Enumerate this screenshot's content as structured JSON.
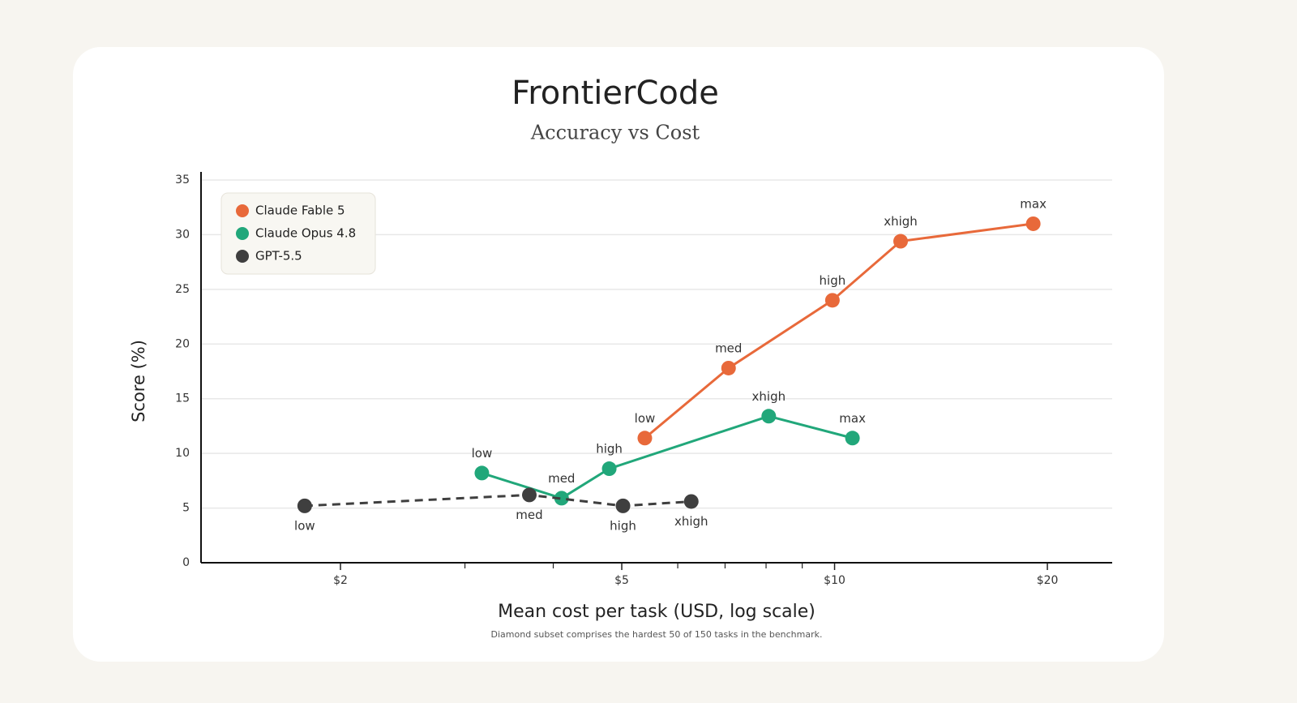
{
  "chart_data": {
    "type": "line",
    "title": "FrontierCode",
    "subtitle": "Accuracy vs Cost",
    "xlabel": "Mean cost per task (USD, log scale)",
    "ylabel": "Score (%)",
    "footnote": "Diamond subset comprises the hardest 50 of 150 tasks in the benchmark.",
    "xscale": "log",
    "xlim": [
      1.27,
      24.7
    ],
    "xticks": [
      {
        "value": 2,
        "label": "$2"
      },
      {
        "value": 5,
        "label": "$5"
      },
      {
        "value": 10,
        "label": "$10"
      },
      {
        "value": 20,
        "label": "$20"
      }
    ],
    "xminorticks": [
      3,
      4,
      6,
      7,
      8,
      9
    ],
    "ylim": [
      0,
      35
    ],
    "yticks": [
      0,
      5,
      10,
      15,
      20,
      25,
      30,
      35
    ],
    "grid": true,
    "legend": "top-left",
    "series": [
      {
        "name": "Claude Fable 5",
        "color": "#e8693a",
        "dash": false,
        "label_position": "above",
        "x": [
          5.39,
          7.08,
          9.93,
          12.4,
          19.1
        ],
        "values": [
          11.4,
          17.8,
          24.0,
          29.4,
          31.0
        ],
        "point_labels": [
          "low",
          "med",
          "high",
          "xhigh",
          "max"
        ]
      },
      {
        "name": "Claude Opus 4.8",
        "color": "#21a77a",
        "dash": false,
        "label_position": "above",
        "x": [
          3.17,
          4.11,
          4.8,
          8.07,
          10.6
        ],
        "values": [
          8.2,
          5.9,
          8.6,
          13.4,
          11.4
        ],
        "point_labels": [
          "low",
          "med",
          "high",
          "xhigh",
          "max"
        ]
      },
      {
        "name": "GPT-5.5",
        "color": "#3f3f3f",
        "dash": true,
        "label_position": "below",
        "x": [
          1.78,
          3.7,
          5.02,
          6.27
        ],
        "values": [
          5.2,
          6.2,
          5.2,
          5.6
        ],
        "point_labels": [
          "low",
          "med",
          "high",
          "xhigh"
        ]
      }
    ]
  }
}
